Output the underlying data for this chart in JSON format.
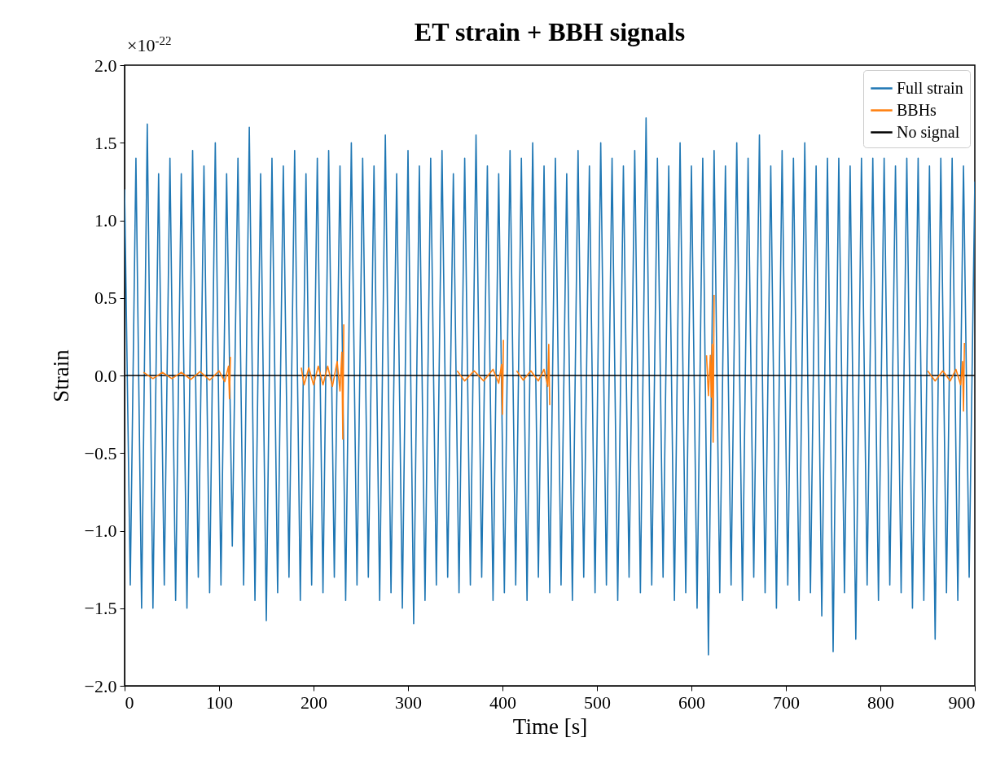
{
  "chart_data": {
    "type": "line",
    "title": "ET strain + BBH signals",
    "xlabel": "Time [s]",
    "ylabel": "Strain",
    "annotations": [
      "×10$^{-22}$"
    ],
    "xlim": [
      0,
      900
    ],
    "xticks": [
      0,
      100,
      200,
      300,
      400,
      500,
      600,
      700,
      800,
      900
    ],
    "ylim": [
      -2,
      2
    ],
    "yticks": [
      {
        "value": -2,
        "label": "−2.0"
      },
      {
        "value": -1.5,
        "label": "−1.5"
      },
      {
        "value": -1,
        "label": "−1.0"
      },
      {
        "value": -0.5,
        "label": "−0.5"
      },
      {
        "value": 0,
        "label": "0.0"
      },
      {
        "value": 0.5,
        "label": "0.5"
      },
      {
        "value": 1,
        "label": "1.0"
      },
      {
        "value": 1.5,
        "label": "1.5"
      },
      {
        "value": 2,
        "label": "2.0"
      }
    ],
    "legend": "top right",
    "grid": false,
    "series": [
      {
        "name": "Full strain",
        "color": "#1f77b4",
        "x": [
          0,
          6,
          12,
          18,
          24,
          30,
          36,
          42,
          48,
          54,
          60,
          66,
          72,
          78,
          84,
          90,
          96,
          102,
          108,
          114,
          120,
          126,
          132,
          138,
          144,
          150,
          156,
          162,
          168,
          174,
          180,
          186,
          192,
          198,
          204,
          210,
          216,
          222,
          228,
          234,
          240,
          246,
          252,
          258,
          264,
          270,
          276,
          282,
          288,
          294,
          300,
          306,
          312,
          318,
          324,
          330,
          336,
          342,
          348,
          354,
          360,
          366,
          372,
          378,
          384,
          390,
          396,
          402,
          408,
          414,
          420,
          426,
          432,
          438,
          444,
          450,
          456,
          462,
          468,
          474,
          480,
          486,
          492,
          498,
          504,
          510,
          516,
          522,
          528,
          534,
          540,
          546,
          552,
          558,
          564,
          570,
          576,
          582,
          588,
          594,
          600,
          606,
          612,
          618,
          624,
          630,
          636,
          642,
          648,
          654,
          660,
          666,
          672,
          678,
          684,
          690,
          696,
          702,
          708,
          714,
          720,
          726,
          732,
          738,
          744,
          750,
          756,
          762,
          768,
          774,
          780,
          786,
          792,
          798,
          804,
          810,
          816,
          822,
          828,
          834,
          840,
          846,
          852,
          858,
          864,
          870,
          876,
          882,
          888,
          894,
          900
        ],
        "values": [
          1.2,
          -1.35,
          1.4,
          -1.5,
          1.62,
          -1.5,
          1.3,
          -1.35,
          1.4,
          -1.45,
          1.3,
          -1.5,
          1.45,
          -1.3,
          1.35,
          -1.4,
          1.5,
          -1.35,
          1.3,
          -1.1,
          1.4,
          -1.35,
          1.6,
          -1.45,
          1.3,
          -1.58,
          1.4,
          -1.4,
          1.35,
          -1.3,
          1.45,
          -1.45,
          1.3,
          -1.35,
          1.4,
          -1.4,
          1.45,
          -1.3,
          1.35,
          -1.45,
          1.5,
          -1.35,
          1.4,
          -1.3,
          1.35,
          -1.45,
          1.55,
          -1.4,
          1.3,
          -1.5,
          1.45,
          -1.6,
          1.35,
          -1.45,
          1.4,
          -1.35,
          1.45,
          -1.3,
          1.3,
          -1.4,
          1.4,
          -1.35,
          1.55,
          -1.3,
          1.35,
          -1.45,
          1.3,
          -1.4,
          1.45,
          -1.35,
          1.4,
          -1.45,
          1.5,
          -1.3,
          1.35,
          -1.4,
          1.4,
          -1.35,
          1.3,
          -1.45,
          1.45,
          -1.3,
          1.35,
          -1.4,
          1.5,
          -1.35,
          1.4,
          -1.45,
          1.35,
          -1.3,
          1.45,
          -1.4,
          1.66,
          -1.35,
          1.4,
          -1.3,
          1.35,
          -1.45,
          1.5,
          -1.4,
          1.35,
          -1.5,
          1.4,
          -1.8,
          1.45,
          -1.4,
          1.35,
          -1.35,
          1.5,
          -1.45,
          1.4,
          -1.3,
          1.55,
          -1.4,
          1.35,
          -1.5,
          1.45,
          -1.35,
          1.4,
          -1.45,
          1.5,
          -1.4,
          1.35,
          -1.55,
          1.4,
          -1.78,
          1.4,
          -1.4,
          1.35,
          -1.7,
          1.4,
          -1.35,
          1.4,
          -1.45,
          1.4,
          -1.35,
          1.35,
          -1.4,
          1.4,
          -1.5,
          1.4,
          -1.45,
          1.35,
          -1.7,
          1.4,
          -1.4,
          1.4,
          -1.45,
          1.35,
          -1.3,
          1.25
        ]
      },
      {
        "name": "BBHs",
        "color": "#ff7f0e",
        "x": [
          20,
          30,
          40,
          50,
          60,
          70,
          80,
          90,
          100,
          106,
          110,
          111,
          112,
          150,
          187,
          190,
          195,
          200,
          205,
          210,
          215,
          220,
          225,
          228,
          230,
          231,
          232,
          290,
          352,
          360,
          370,
          380,
          390,
          396,
          399,
          400,
          401,
          408,
          415,
          422,
          430,
          438,
          444,
          448,
          449,
          450,
          500,
          616,
          618,
          620,
          621,
          622,
          623,
          624,
          700,
          850,
          858,
          866,
          874,
          880,
          885,
          887,
          888,
          889
        ],
        "values": [
          0.02,
          -0.02,
          0.02,
          -0.02,
          0.02,
          -0.025,
          0.025,
          -0.03,
          0.03,
          -0.04,
          0.06,
          -0.15,
          0.12,
          null,
          0.05,
          -0.06,
          0.05,
          -0.06,
          0.06,
          -0.06,
          0.06,
          -0.07,
          0.09,
          -0.1,
          0.15,
          -0.41,
          0.33,
          null,
          0.03,
          -0.035,
          0.03,
          -0.035,
          0.04,
          -0.05,
          0.07,
          -0.25,
          0.23,
          null,
          0.03,
          -0.03,
          0.03,
          -0.035,
          0.04,
          -0.07,
          0.2,
          -0.19,
          null,
          0.13,
          -0.13,
          0.13,
          -0.14,
          0.2,
          -0.43,
          0.52,
          null,
          0.03,
          -0.035,
          0.03,
          -0.035,
          0.04,
          -0.06,
          0.09,
          -0.23,
          0.21
        ]
      },
      {
        "name": "No signal",
        "color": "#000000",
        "x": [
          0,
          900
        ],
        "values": [
          0,
          0
        ]
      }
    ]
  }
}
